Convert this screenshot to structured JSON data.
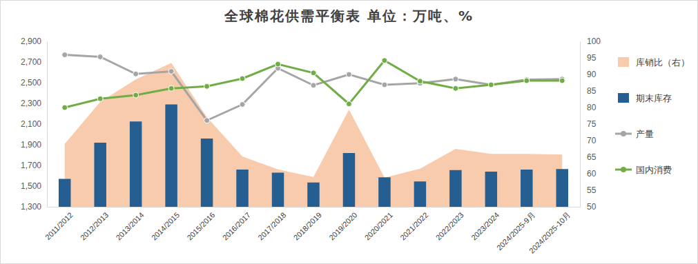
{
  "chart_data": {
    "type": "bar",
    "title": "全球棉花供需平衡表 单位：万吨、%",
    "categories": [
      "2011/2012",
      "2012/2013",
      "2013/2014",
      "2014/2015",
      "2015/2016",
      "2016/2017",
      "2017/2018",
      "2018/2019",
      "2019/2020",
      "2020/2021",
      "2021/2022",
      "2022/2023",
      "2023/2024",
      "2024/2025-9月",
      "2024/2025-10月"
    ],
    "series": [
      {
        "name": "库销比（右）",
        "type": "area",
        "axis": "y2",
        "color": "#F8CBAD",
        "values": [
          69.0,
          81.7,
          88.5,
          93.5,
          77.1,
          65.2,
          61.3,
          59.0,
          79.4,
          58.8,
          61.5,
          67.5,
          66.0,
          66.0,
          65.8
        ]
      },
      {
        "name": "期末库存",
        "type": "bar",
        "color": "#255E91",
        "values": [
          1570,
          1920,
          2125,
          2290,
          1960,
          1660,
          1630,
          1535,
          1820,
          1585,
          1545,
          1655,
          1640,
          1660,
          1665
        ]
      },
      {
        "name": "产量",
        "type": "line",
        "color": "#A5A5A5",
        "marker": "circle",
        "values": [
          2770,
          2750,
          2585,
          2610,
          2135,
          2290,
          2640,
          2475,
          2580,
          2480,
          2495,
          2535,
          2480,
          2530,
          2535
        ]
      },
      {
        "name": "国内消费",
        "type": "line",
        "color": "#70AD47",
        "marker": "circle",
        "values": [
          2260,
          2345,
          2380,
          2445,
          2465,
          2540,
          2680,
          2595,
          2295,
          2715,
          2515,
          2445,
          2480,
          2520,
          2520
        ]
      }
    ],
    "ylim": [
      1300,
      2900
    ],
    "yticks": [
      {
        "value": 1300,
        "label": "1,300"
      },
      {
        "value": 1500,
        "label": "1,500"
      },
      {
        "value": 1700,
        "label": "1,700"
      },
      {
        "value": 1900,
        "label": "1,900"
      },
      {
        "value": 2100,
        "label": "2,100"
      },
      {
        "value": 2300,
        "label": "2,300"
      },
      {
        "value": 2500,
        "label": "2,500"
      },
      {
        "value": 2700,
        "label": "2,700"
      },
      {
        "value": 2900,
        "label": "2,900"
      }
    ],
    "y2lim": [
      50,
      100
    ],
    "y2ticks": [
      50,
      55,
      60,
      65,
      70,
      75,
      80,
      85,
      90,
      95,
      100
    ],
    "grid": false,
    "legend": "right"
  }
}
